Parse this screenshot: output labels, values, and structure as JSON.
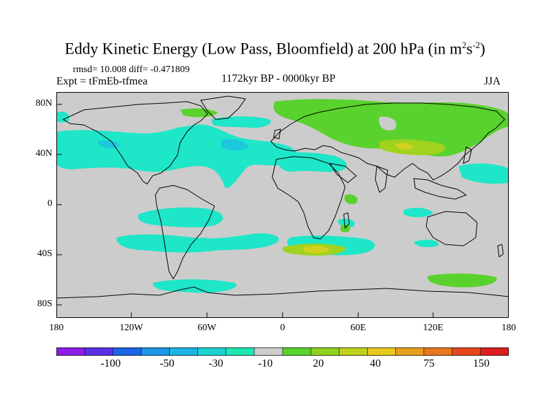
{
  "title": {
    "main": "Eddy Kinetic Energy (Low Pass, Bloomfield) at 200 hPa (in m",
    "sup1": "2",
    "mid": "s",
    "sup2": "-2",
    "close": ")"
  },
  "stats": "rmsd= 10.008 diff= -0.471809",
  "expt": "Expt = tFmEb-tfmea",
  "period": "1172kyr BP - 0000kyr BP",
  "season": "JJA",
  "map": {
    "y_ticks": [
      "80N",
      "40N",
      "0",
      "40S",
      "80S"
    ],
    "x_ticks": [
      "180",
      "120W",
      "60W",
      "0",
      "60E",
      "120E",
      "180"
    ]
  },
  "colorbar": {
    "colors": [
      "#8c1ee6",
      "#5a32e6",
      "#1e64e6",
      "#1e96e6",
      "#1eb4e6",
      "#1ed2d2",
      "#1ee6b4",
      "#cccccc",
      "#5ad22d",
      "#8cd21e",
      "#bed21e",
      "#e6c81e",
      "#e6a01e",
      "#e6781e",
      "#e6461e",
      "#dc1e1e"
    ],
    "labels": [
      "-100",
      "-50",
      "-30",
      "-10",
      "20",
      "40",
      "75",
      "150"
    ]
  },
  "palette": {
    "land_bg": "#cccccc",
    "neg": "#1ee6c8",
    "neg_strong": "#1ec8dc",
    "pos": "#5ad22d",
    "pos_strong": "#a0d21e",
    "pos_max": "#d2d21e"
  }
}
